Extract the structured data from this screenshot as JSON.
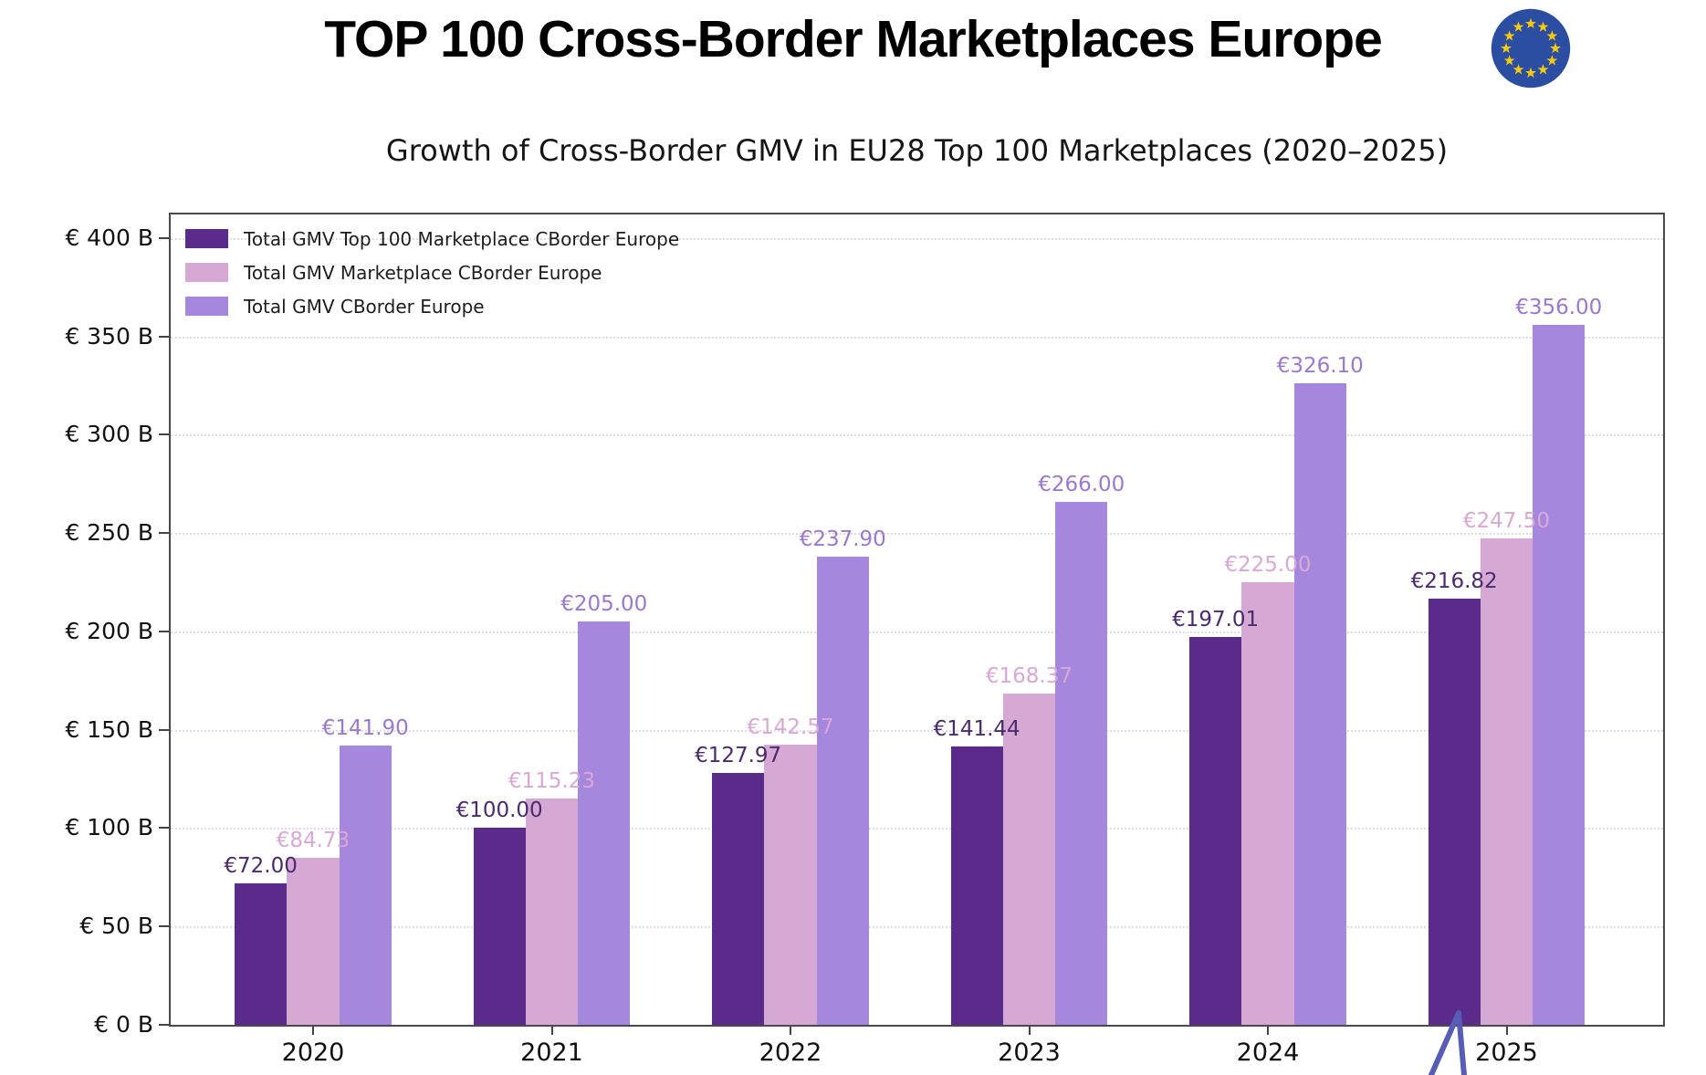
{
  "header": {
    "title": "TOP 100 Cross-Border Marketplaces Europe"
  },
  "colors": {
    "flag_blue": "#2b4ea2",
    "flag_star": "#f6c90e",
    "cursor_mark": "#575cb5",
    "axis": "#4a4a4a",
    "grid": "#e0dae6"
  },
  "chart_data": {
    "type": "bar",
    "title": "Growth of Cross-Border GMV in EU28 Top 100 Marketplaces (2020–2025)",
    "categories": [
      "2020",
      "2021",
      "2022",
      "2023",
      "2024",
      "2025"
    ],
    "series": [
      {
        "name": "Total GMV Top 100 Marketplace CBorder Europe",
        "color": "#5a2b8a",
        "label_color": "#4a2a70",
        "values": [
          72.0,
          100.0,
          127.97,
          141.44,
          197.01,
          216.82
        ],
        "labels": [
          "€72.00",
          "€100.00",
          "€127.97",
          "€141.44",
          "€197.01",
          "€216.82"
        ]
      },
      {
        "name": "Total GMV Marketplace CBorder Europe",
        "color": "#d6a9d4",
        "label_color": "#d9a8d6",
        "values": [
          84.73,
          115.23,
          142.57,
          168.37,
          225.0,
          247.5
        ],
        "labels": [
          "€84.73",
          "€115.23",
          "€142.57",
          "€168.37",
          "€225.00",
          "€247.50"
        ]
      },
      {
        "name": "Total GMV CBorder Europe",
        "color": "#a687de",
        "label_color": "#9b78d2",
        "values": [
          141.9,
          205.0,
          237.9,
          266.0,
          326.1,
          356.0
        ],
        "labels": [
          "€141.90",
          "€205.00",
          "€237.90",
          "€266.00",
          "€326.10",
          "€356.00"
        ]
      }
    ],
    "ylim": [
      0,
      400
    ],
    "ytick_step": 50,
    "ytick_labels": [
      "€ 0 B",
      "€ 50 B",
      "€ 100 B",
      "€ 150 B",
      "€ 200 B",
      "€ 250 B",
      "€ 300 B",
      "€ 350 B",
      "€ 400 B"
    ],
    "legend_position": "upper-left",
    "grid": "horizontal-dotted"
  }
}
